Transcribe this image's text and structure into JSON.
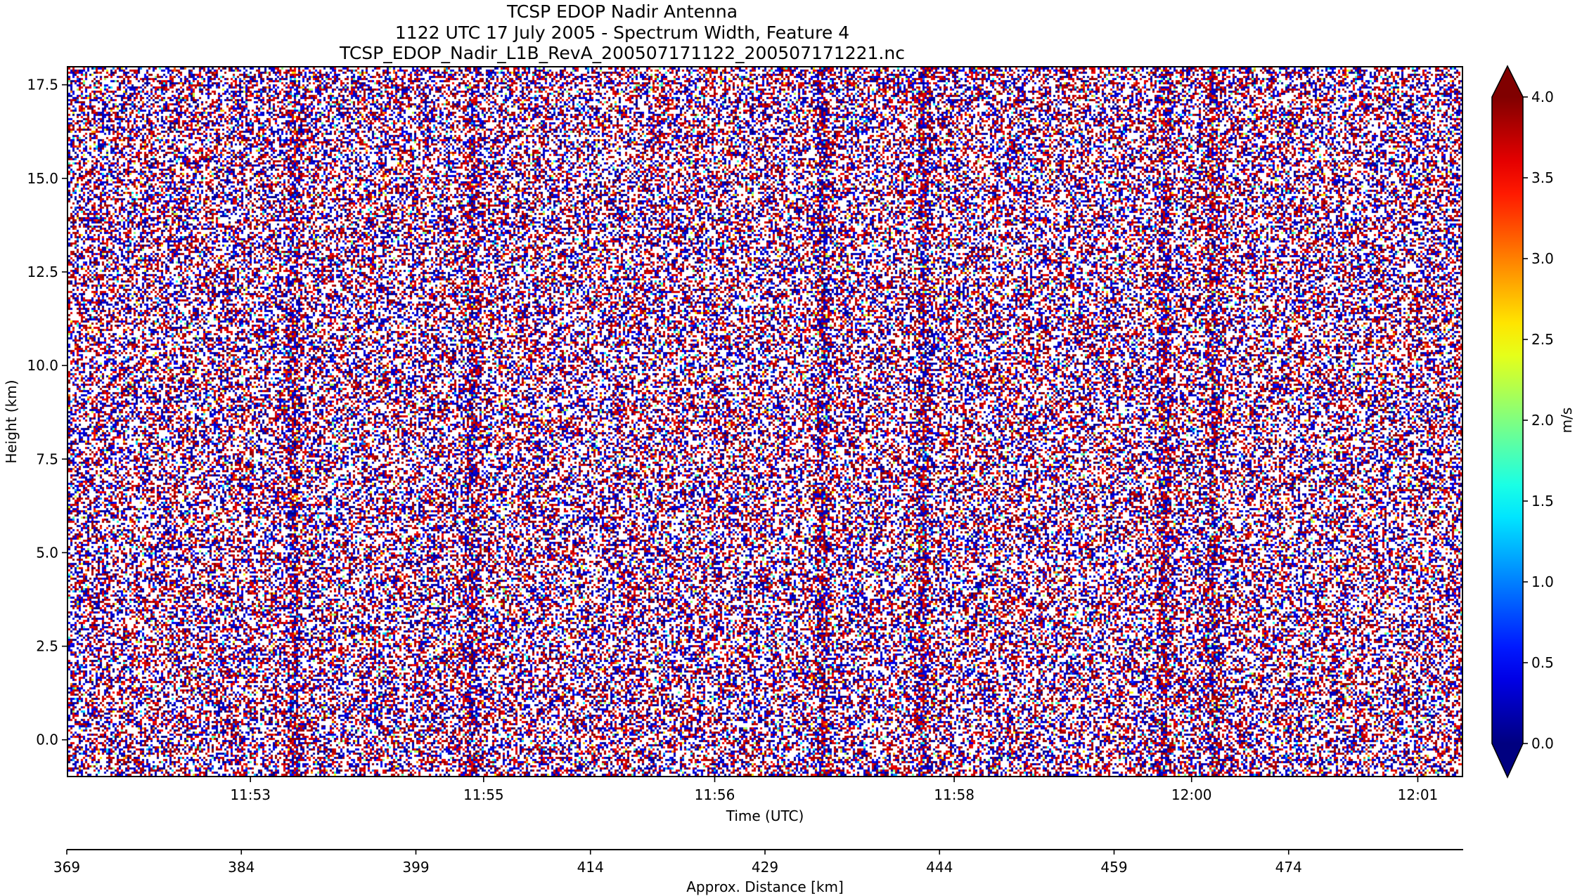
{
  "chart_data": {
    "type": "heatmap",
    "title_lines": [
      "TCSP EDOP Nadir Antenna",
      "1122 UTC 17 July 2005 - Spectrum Width, Feature 4",
      "TCSP_EDOP_Nadir_L1B_RevA_200507171122_200507171221.nc"
    ],
    "xlabel": "Time (UTC)",
    "ylabel": "Height (km)",
    "x_ticks": [
      {
        "label": "11:53",
        "frac": 0.1315
      },
      {
        "label": "11:55",
        "frac": 0.2985
      },
      {
        "label": "11:56",
        "frac": 0.464
      },
      {
        "label": "11:58",
        "frac": 0.6355
      },
      {
        "label": "12:00",
        "frac": 0.8055
      },
      {
        "label": "12:01",
        "frac": 0.9675
      }
    ],
    "ylim": [
      -1.0,
      18.0
    ],
    "y_ticks": [
      0.0,
      2.5,
      5.0,
      7.5,
      10.0,
      12.5,
      15.0,
      17.5
    ],
    "y_tick_labels": [
      "0.0",
      "2.5",
      "5.0",
      "7.5",
      "10.0",
      "12.5",
      "15.0",
      "17.5"
    ],
    "secondary_x": {
      "label": "Approx. Distance [km]",
      "range": [
        369,
        489
      ],
      "ticks": [
        369,
        384,
        399,
        414,
        429,
        444,
        459,
        474
      ],
      "tick_labels": [
        "369",
        "384",
        "399",
        "414",
        "429",
        "444",
        "459",
        "474"
      ]
    },
    "colorbar": {
      "label": "m/s",
      "range": [
        0.0,
        4.0
      ],
      "ticks": [
        0.0,
        0.5,
        1.0,
        1.5,
        2.0,
        2.5,
        3.0,
        3.5,
        4.0
      ],
      "tick_labels": [
        "0.0",
        "0.5",
        "1.0",
        "1.5",
        "2.0",
        "2.5",
        "3.0",
        "3.5",
        "4.0"
      ],
      "colormap": "jet",
      "extend": "both"
    },
    "vertical_feature_fracs": [
      0.161,
      0.289,
      0.541,
      0.613,
      0.786,
      0.821
    ],
    "grid": true
  }
}
